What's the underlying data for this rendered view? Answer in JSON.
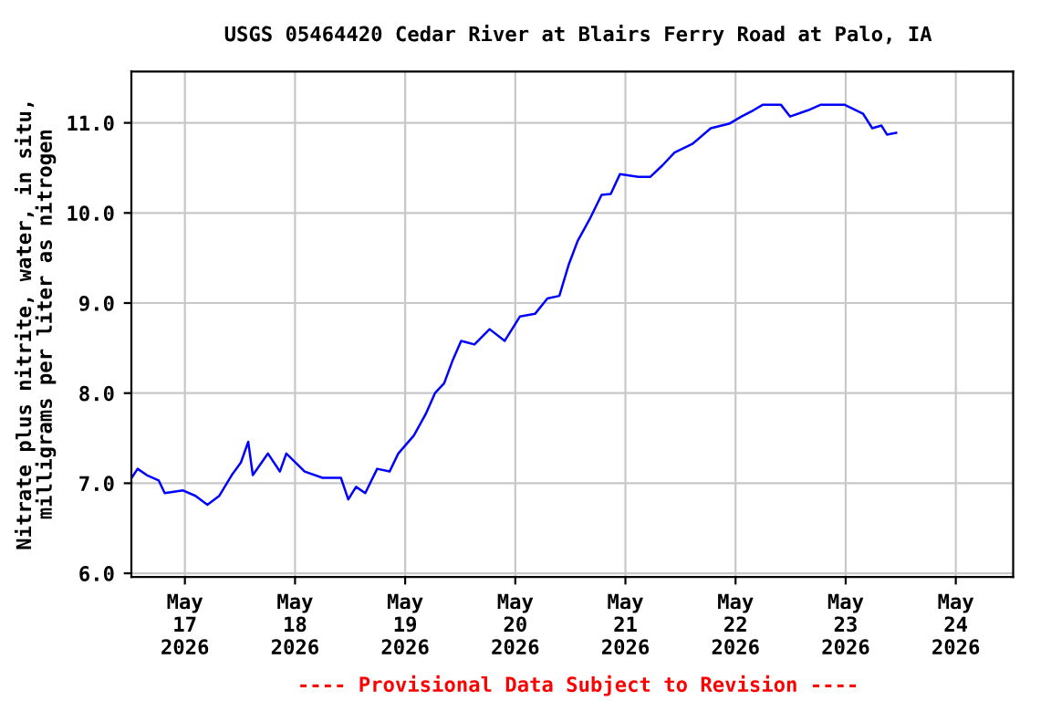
{
  "chart_data": {
    "type": "line",
    "title": "USGS 05464420 Cedar River at Blairs Ferry Road at Palo, IA",
    "ylabel": "Nitrate plus nitrite, water, in situ,\nmilligrams per liter as nitrogen",
    "annotations": [
      "---- Provisional Data Subject to Revision ----"
    ],
    "x": [
      "2026-05-16T12:24",
      "2026-05-16T13:42",
      "2026-05-16T15:42",
      "2026-05-16T18:18",
      "2026-05-16T19:36",
      "2026-05-16T23:36",
      "2026-05-17T02:18",
      "2026-05-17T04:54",
      "2026-05-17T07:30",
      "2026-05-17T10:12",
      "2026-05-17T12:12",
      "2026-05-17T13:48",
      "2026-05-17T14:48",
      "2026-05-17T18:06",
      "2026-05-17T20:42",
      "2026-05-17T22:06",
      "2026-05-18T02:06",
      "2026-05-18T06:00",
      "2026-05-18T10:00",
      "2026-05-18T11:36",
      "2026-05-18T13:18",
      "2026-05-18T15:18",
      "2026-05-18T17:54",
      "2026-05-18T20:36",
      "2026-05-18T22:30",
      "2026-05-19T01:54",
      "2026-05-19T04:30",
      "2026-05-19T06:30",
      "2026-05-19T08:30",
      "2026-05-19T10:24",
      "2026-05-19T12:12",
      "2026-05-19T15:06",
      "2026-05-19T18:24",
      "2026-05-19T21:42",
      "2026-05-20T01:00",
      "2026-05-20T04:18",
      "2026-05-20T07:00",
      "2026-05-20T09:36",
      "2026-05-20T11:36",
      "2026-05-20T13:36",
      "2026-05-20T16:12",
      "2026-05-20T18:48",
      "2026-05-20T20:48",
      "2026-05-20T22:48",
      "2026-05-21T02:48",
      "2026-05-21T05:24",
      "2026-05-21T08:06",
      "2026-05-21T10:42",
      "2026-05-21T14:42",
      "2026-05-21T18:36",
      "2026-05-21T22:36",
      "2026-05-22T01:18",
      "2026-05-22T03:54",
      "2026-05-22T05:54",
      "2026-05-22T09:54",
      "2026-05-22T11:54",
      "2026-05-22T15:48",
      "2026-05-22T18:30",
      "2026-05-22T23:48",
      "2026-05-23T03:48",
      "2026-05-23T05:48",
      "2026-05-23T07:48",
      "2026-05-23T09:00",
      "2026-05-23T11:00"
    ],
    "series": [
      {
        "color": "#0000ff",
        "values": [
          7.06,
          7.16,
          7.09,
          7.03,
          6.89,
          6.92,
          6.86,
          6.76,
          6.86,
          7.09,
          7.23,
          7.46,
          7.09,
          7.33,
          7.13,
          7.33,
          7.13,
          7.06,
          7.06,
          6.82,
          6.96,
          6.89,
          7.16,
          7.13,
          7.33,
          7.53,
          7.77,
          8.0,
          8.11,
          8.37,
          8.58,
          8.54,
          8.71,
          8.58,
          8.85,
          8.88,
          9.05,
          9.08,
          9.42,
          9.69,
          9.93,
          10.2,
          10.21,
          10.43,
          10.4,
          10.4,
          10.53,
          10.67,
          10.77,
          10.94,
          10.99,
          11.07,
          11.14,
          11.2,
          11.2,
          11.07,
          11.14,
          11.2,
          11.2,
          11.1,
          10.94,
          10.97,
          10.87,
          10.89
        ]
      }
    ],
    "xlim": [
      "2026-05-16T12:20",
      "2026-05-24T12:30"
    ],
    "xticks": [
      {
        "value": "2026-05-17",
        "label": "May\n17\n2026"
      },
      {
        "value": "2026-05-18",
        "label": "May\n18\n2026"
      },
      {
        "value": "2026-05-19",
        "label": "May\n19\n2026"
      },
      {
        "value": "2026-05-20",
        "label": "May\n20\n2026"
      },
      {
        "value": "2026-05-21",
        "label": "May\n21\n2026"
      },
      {
        "value": "2026-05-22",
        "label": "May\n22\n2026"
      },
      {
        "value": "2026-05-23",
        "label": "May\n23\n2026"
      },
      {
        "value": "2026-05-24",
        "label": "May\n24\n2026"
      }
    ],
    "ylim": [
      5.96,
      11.57
    ],
    "yticks": [
      {
        "value": 6,
        "label": "6.0"
      },
      {
        "value": 7,
        "label": "7.0"
      },
      {
        "value": 8,
        "label": "8.0"
      },
      {
        "value": 9,
        "label": "9.0"
      },
      {
        "value": 10,
        "label": "10.0"
      },
      {
        "value": 11,
        "label": "11.0"
      }
    ],
    "grid": true,
    "legend": false
  }
}
